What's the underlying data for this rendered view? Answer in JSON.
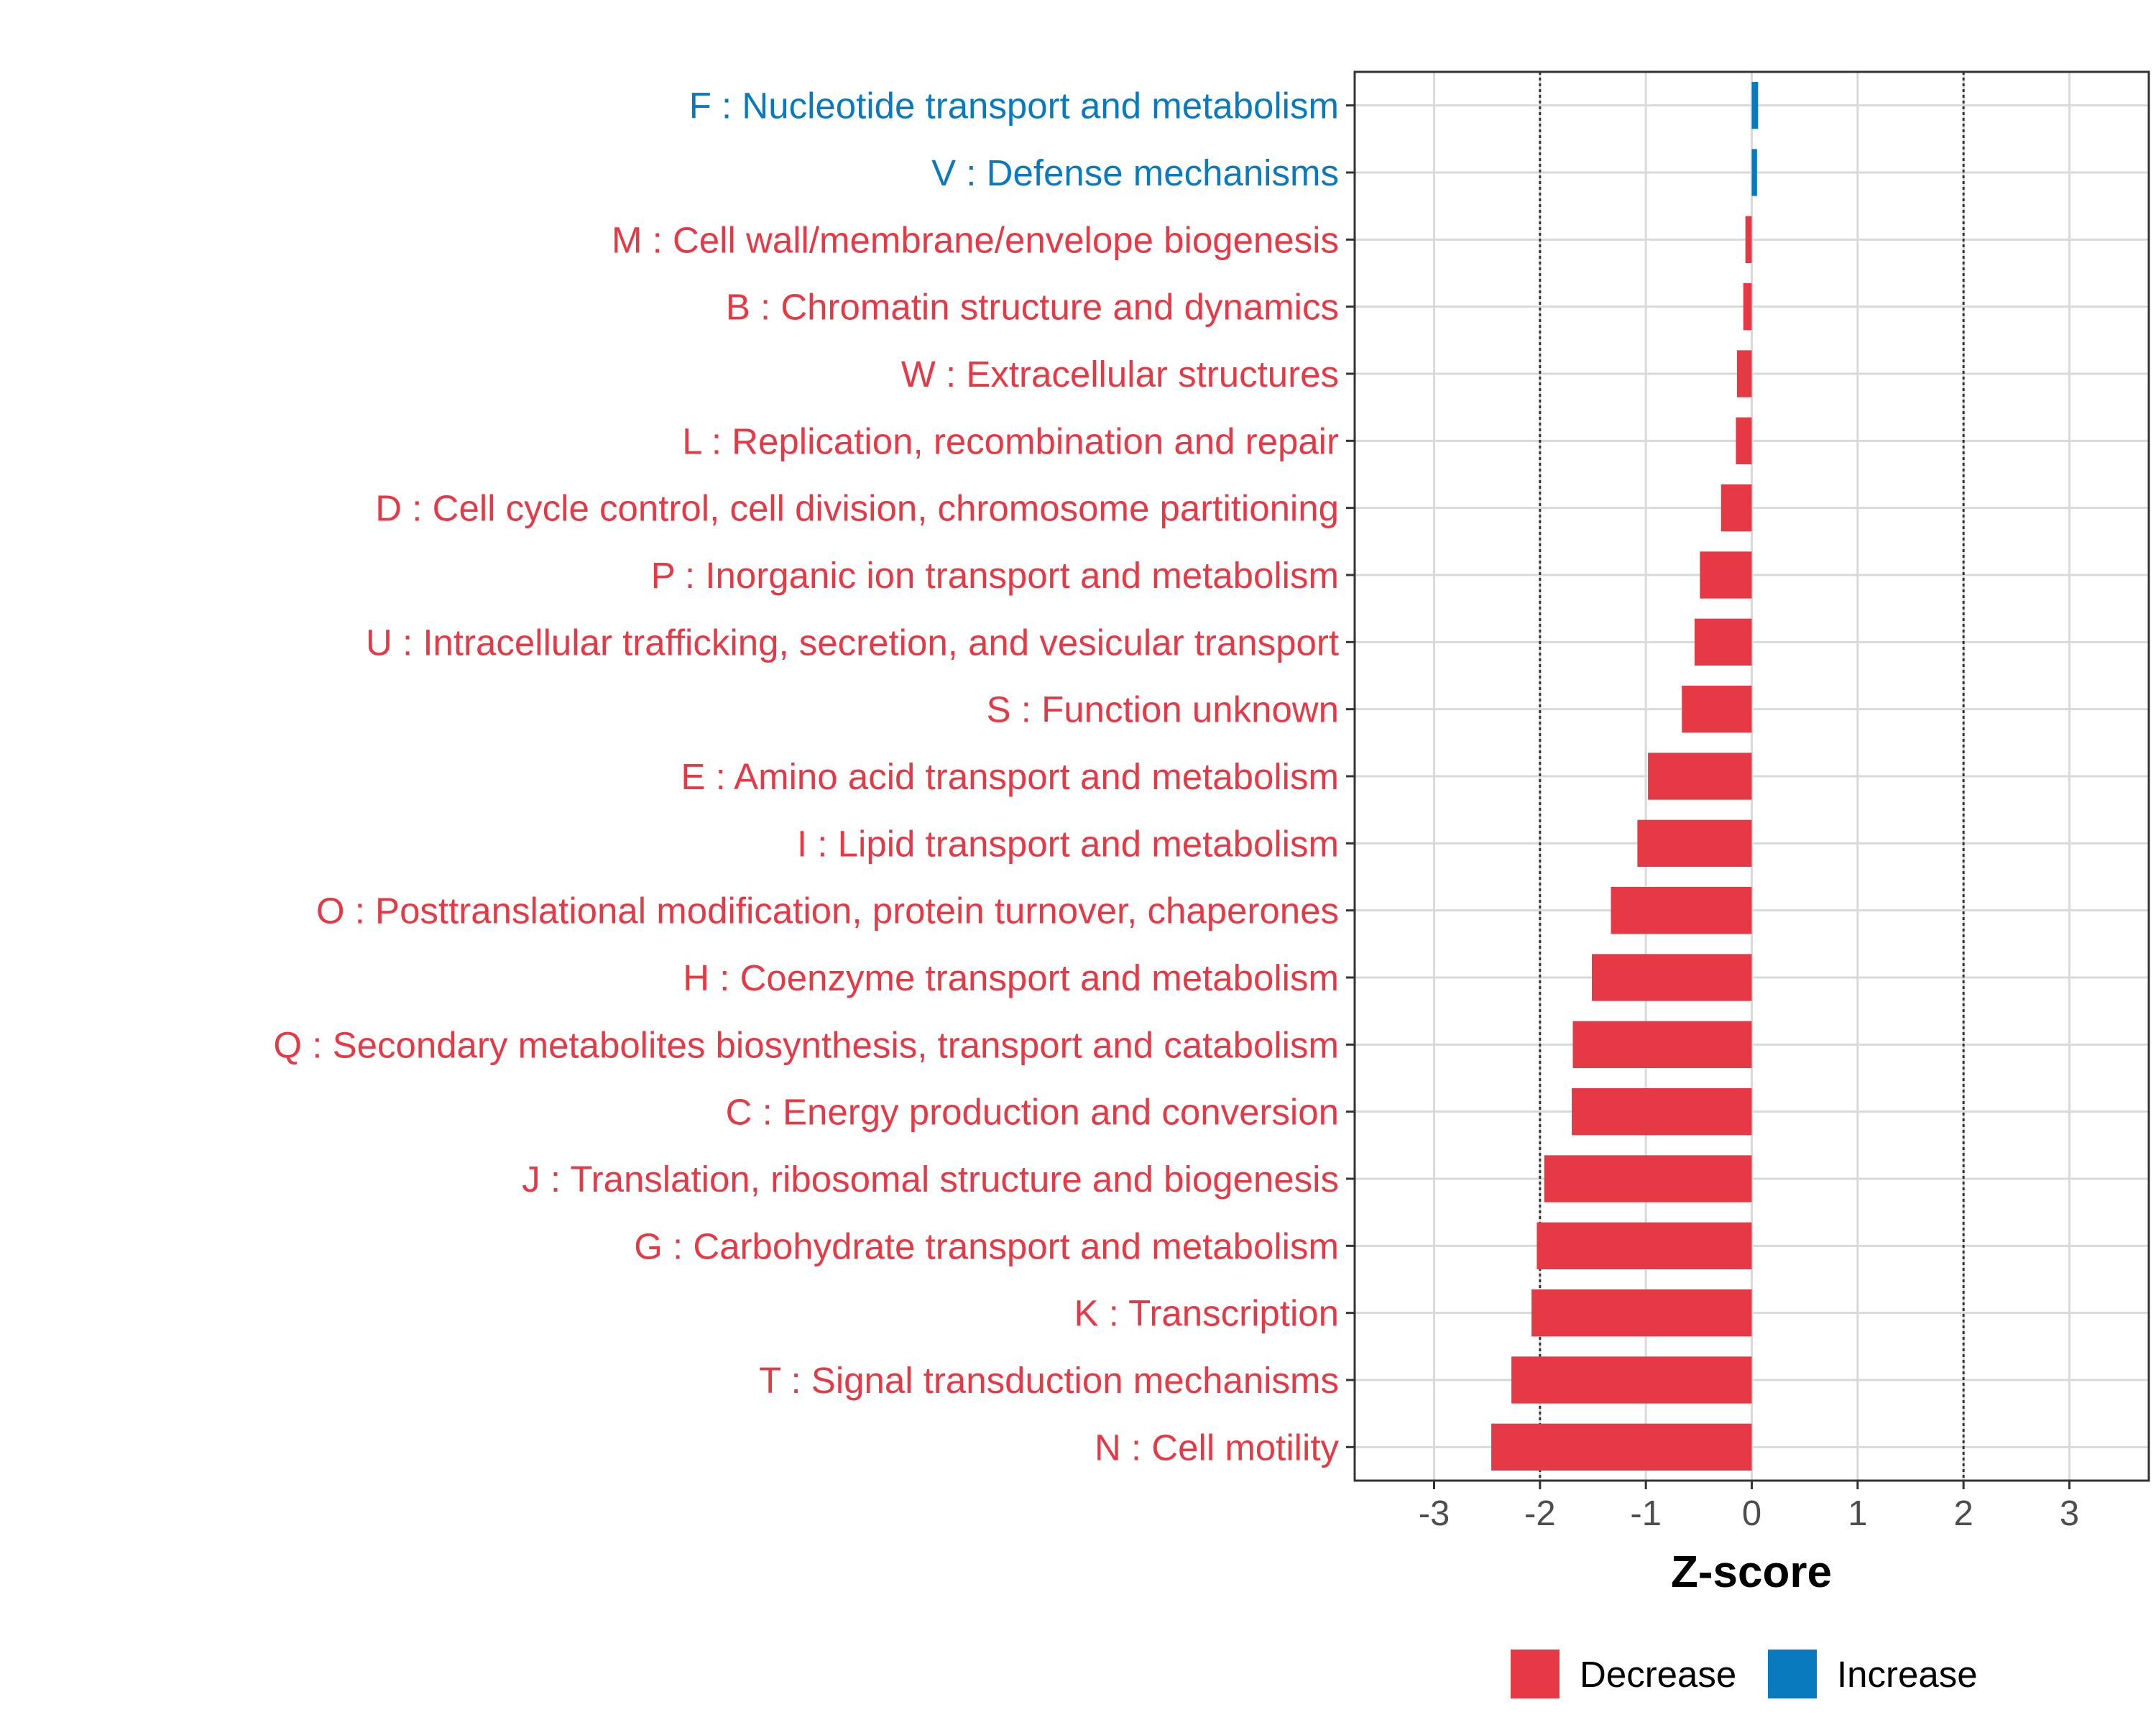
{
  "chart_data": {
    "type": "bar",
    "orientation": "horizontal",
    "xlabel": "Z-score",
    "xlim": [
      -3.75,
      3.75
    ],
    "xticks": [
      -3,
      -2,
      -1,
      0,
      1,
      2,
      3
    ],
    "xtick_labels": [
      "-3",
      "-2",
      "-1",
      "0",
      "1",
      "2",
      "3"
    ],
    "threshold_lines": [
      -2,
      2
    ],
    "grid": true,
    "legend_position": "bottom",
    "legend": [
      {
        "label": "Decrease",
        "color": "#e63946"
      },
      {
        "label": "Increase",
        "color": "#0a7abf"
      }
    ],
    "colors": {
      "Decrease": "#e63946",
      "Increase": "#0a7abf"
    },
    "bars": [
      {
        "label": "F : Nucleotide transport and metabolism",
        "value": 0.06,
        "direction": "Increase"
      },
      {
        "label": "V : Defense mechanisms",
        "value": 0.05,
        "direction": "Increase"
      },
      {
        "label": "M : Cell wall/membrane/envelope biogenesis",
        "value": -0.06,
        "direction": "Decrease"
      },
      {
        "label": "B : Chromatin structure and dynamics",
        "value": -0.08,
        "direction": "Decrease"
      },
      {
        "label": "W : Extracellular structures",
        "value": -0.14,
        "direction": "Decrease"
      },
      {
        "label": "L : Replication, recombination and repair",
        "value": -0.15,
        "direction": "Decrease"
      },
      {
        "label": "D : Cell cycle control, cell division, chromosome partitioning",
        "value": -0.29,
        "direction": "Decrease"
      },
      {
        "label": "P : Inorganic ion transport and metabolism",
        "value": -0.49,
        "direction": "Decrease"
      },
      {
        "label": "U : Intracellular trafficking, secretion, and vesicular transport",
        "value": -0.54,
        "direction": "Decrease"
      },
      {
        "label": "S : Function unknown",
        "value": -0.66,
        "direction": "Decrease"
      },
      {
        "label": "E : Amino acid transport and metabolism",
        "value": -0.98,
        "direction": "Decrease"
      },
      {
        "label": "I : Lipid transport and metabolism",
        "value": -1.08,
        "direction": "Decrease"
      },
      {
        "label": "O : Posttranslational modification, protein turnover, chaperones",
        "value": -1.33,
        "direction": "Decrease"
      },
      {
        "label": "H : Coenzyme transport and metabolism",
        "value": -1.51,
        "direction": "Decrease"
      },
      {
        "label": "Q : Secondary metabolites biosynthesis, transport and catabolism",
        "value": -1.69,
        "direction": "Decrease"
      },
      {
        "label": "C : Energy production and conversion",
        "value": -1.7,
        "direction": "Decrease"
      },
      {
        "label": "J : Translation, ribosomal structure and biogenesis",
        "value": -1.96,
        "direction": "Decrease"
      },
      {
        "label": "G : Carbohydrate transport and metabolism",
        "value": -2.03,
        "direction": "Decrease"
      },
      {
        "label": "K : Transcription",
        "value": -2.08,
        "direction": "Decrease"
      },
      {
        "label": "T : Signal transduction mechanisms",
        "value": -2.27,
        "direction": "Decrease"
      },
      {
        "label": "N : Cell motility",
        "value": -2.46,
        "direction": "Decrease"
      }
    ]
  }
}
